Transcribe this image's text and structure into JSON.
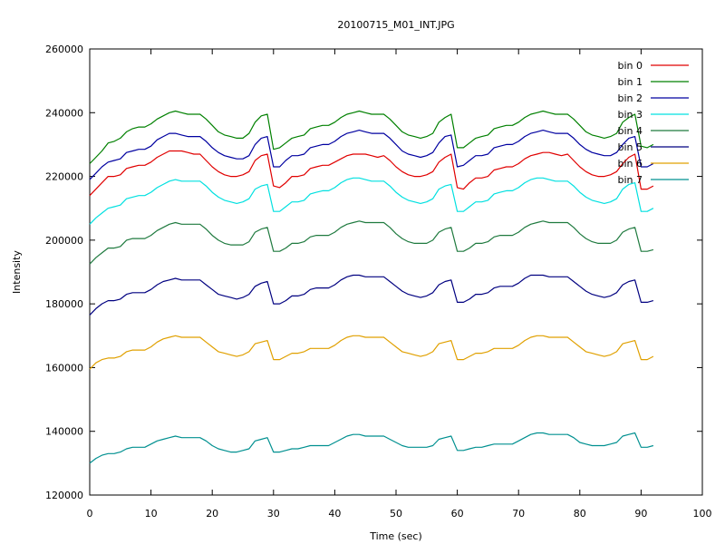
{
  "chart_data": {
    "type": "line",
    "title": "20100715_M01_INT.JPG",
    "xlabel": "Time (sec)",
    "ylabel": "Intensity",
    "xlim": [
      0,
      100
    ],
    "ylim": [
      120000,
      260000
    ],
    "xticks": [
      0,
      10,
      20,
      30,
      40,
      50,
      60,
      70,
      80,
      90,
      100
    ],
    "yticks": [
      120000,
      140000,
      160000,
      180000,
      200000,
      220000,
      240000,
      260000
    ],
    "grid": false,
    "legend_position": "top-right",
    "x": [
      0,
      1,
      2,
      3,
      4,
      5,
      6,
      7,
      8,
      9,
      10,
      11,
      12,
      13,
      14,
      15,
      16,
      17,
      18,
      19,
      20,
      21,
      22,
      23,
      24,
      25,
      26,
      27,
      28,
      29,
      30,
      31,
      32,
      33,
      34,
      35,
      36,
      37,
      38,
      39,
      40,
      41,
      42,
      43,
      44,
      45,
      46,
      47,
      48,
      49,
      50,
      51,
      52,
      53,
      54,
      55,
      56,
      57,
      58,
      59,
      60,
      61,
      62,
      63,
      64,
      65,
      66,
      67,
      68,
      69,
      70,
      71,
      72,
      73,
      74,
      75,
      76,
      77,
      78,
      79,
      80,
      81,
      82,
      83,
      84,
      85,
      86,
      87,
      88,
      89,
      90,
      91,
      92
    ],
    "series": [
      {
        "name": "bin 0",
        "color": "#e00000",
        "values": [
          214000,
          216000,
          218000,
          220000,
          220000,
          220500,
          222500,
          223000,
          223500,
          223500,
          224500,
          226000,
          227000,
          228000,
          228000,
          228000,
          227500,
          227000,
          227000,
          225000,
          223000,
          221500,
          220500,
          220000,
          220000,
          220500,
          221500,
          225000,
          226500,
          227000,
          217000,
          216500,
          218000,
          220000,
          220000,
          220500,
          222500,
          223000,
          223500,
          223500,
          224500,
          225500,
          226500,
          227000,
          227000,
          227000,
          226500,
          226000,
          226500,
          225000,
          223000,
          221500,
          220500,
          220000,
          220000,
          220500,
          221500,
          224500,
          226000,
          227000,
          216500,
          216000,
          218000,
          219500,
          219500,
          220000,
          222000,
          222500,
          223000,
          223000,
          224000,
          225500,
          226500,
          227000,
          227500,
          227500,
          227000,
          226500,
          227000,
          225000,
          223000,
          221500,
          220500,
          220000,
          220000,
          220500,
          221500,
          224000,
          226000,
          227000,
          216000,
          216000,
          217000
        ]
      },
      {
        "name": "bin 1",
        "color": "#008000",
        "values": [
          224000,
          226000,
          228000,
          230500,
          231000,
          232000,
          234000,
          235000,
          235500,
          235500,
          236500,
          238000,
          239000,
          240000,
          240500,
          240000,
          239500,
          239500,
          239500,
          238000,
          236000,
          234000,
          233000,
          232500,
          232000,
          232000,
          233500,
          237000,
          239000,
          239500,
          228500,
          229000,
          230500,
          232000,
          232500,
          233000,
          235000,
          235500,
          236000,
          236000,
          237000,
          238500,
          239500,
          240000,
          240500,
          240000,
          239500,
          239500,
          239500,
          238000,
          236000,
          234000,
          233000,
          232500,
          232000,
          232500,
          233500,
          237000,
          238500,
          239500,
          229000,
          229000,
          230500,
          232000,
          232500,
          233000,
          235000,
          235500,
          236000,
          236000,
          237000,
          238500,
          239500,
          240000,
          240500,
          240000,
          239500,
          239500,
          239500,
          238000,
          236000,
          234000,
          233000,
          232500,
          232000,
          232500,
          233500,
          237000,
          238500,
          239500,
          229500,
          229000,
          230000
        ]
      },
      {
        "name": "bin 2",
        "color": "#0000a0",
        "values": [
          219000,
          221000,
          223000,
          224500,
          225000,
          225500,
          227500,
          228000,
          228500,
          228500,
          229500,
          231500,
          232500,
          233500,
          233500,
          233000,
          232500,
          232500,
          232500,
          231000,
          229000,
          227500,
          226500,
          226000,
          225500,
          225500,
          226500,
          230000,
          232000,
          232500,
          223000,
          223000,
          225000,
          226500,
          226500,
          227000,
          229000,
          229500,
          230000,
          230000,
          231000,
          232500,
          233500,
          234000,
          234500,
          234000,
          233500,
          233500,
          233500,
          232000,
          230000,
          228000,
          227000,
          226500,
          226000,
          226500,
          227500,
          230500,
          232500,
          233000,
          223000,
          223500,
          225000,
          226500,
          226500,
          227000,
          229000,
          229500,
          230000,
          230000,
          231000,
          232500,
          233500,
          234000,
          234500,
          234000,
          233500,
          233500,
          233500,
          232000,
          230000,
          228500,
          227500,
          227000,
          226500,
          226500,
          227500,
          230000,
          232000,
          232500,
          223000,
          223000,
          224000
        ]
      },
      {
        "name": "bin 3",
        "color": "#00e0e0",
        "values": [
          205000,
          207000,
          208500,
          210000,
          210500,
          211000,
          213000,
          213500,
          214000,
          214000,
          215000,
          216500,
          217500,
          218500,
          219000,
          218500,
          218500,
          218500,
          218500,
          217000,
          215000,
          213500,
          212500,
          212000,
          211500,
          212000,
          213000,
          216000,
          217000,
          217500,
          209000,
          209000,
          210500,
          212000,
          212000,
          212500,
          214500,
          215000,
          215500,
          215500,
          216500,
          218000,
          219000,
          219500,
          219500,
          219000,
          218500,
          218500,
          218500,
          217000,
          215000,
          213500,
          212500,
          212000,
          211500,
          212000,
          213000,
          216000,
          217000,
          217500,
          209000,
          209000,
          210500,
          212000,
          212000,
          212500,
          214500,
          215000,
          215500,
          215500,
          216500,
          218000,
          219000,
          219500,
          219500,
          219000,
          218500,
          218500,
          218500,
          217000,
          215000,
          213500,
          212500,
          212000,
          211500,
          212000,
          213000,
          216000,
          217500,
          218000,
          209000,
          209000,
          210000
        ]
      },
      {
        "name": "bin 4",
        "color": "#1f7a3f",
        "values": [
          192500,
          194500,
          196000,
          197500,
          197500,
          198000,
          200000,
          200500,
          200500,
          200500,
          201500,
          203000,
          204000,
          205000,
          205500,
          205000,
          205000,
          205000,
          205000,
          203500,
          201500,
          200000,
          199000,
          198500,
          198500,
          198500,
          199500,
          202500,
          203500,
          204000,
          196500,
          196500,
          197500,
          199000,
          199000,
          199500,
          201000,
          201500,
          201500,
          201500,
          202500,
          204000,
          205000,
          205500,
          206000,
          205500,
          205500,
          205500,
          205500,
          204000,
          202000,
          200500,
          199500,
          199000,
          199000,
          199000,
          200000,
          202500,
          203500,
          204000,
          196500,
          196500,
          197500,
          199000,
          199000,
          199500,
          201000,
          201500,
          201500,
          201500,
          202500,
          204000,
          205000,
          205500,
          206000,
          205500,
          205500,
          205500,
          205500,
          204000,
          202000,
          200500,
          199500,
          199000,
          199000,
          199000,
          200000,
          202500,
          203500,
          204000,
          196500,
          196500,
          197000
        ]
      },
      {
        "name": "bin 5",
        "color": "#000080",
        "values": [
          176500,
          178500,
          180000,
          181000,
          181000,
          181500,
          183000,
          183500,
          183500,
          183500,
          184500,
          186000,
          187000,
          187500,
          188000,
          187500,
          187500,
          187500,
          187500,
          186000,
          184500,
          183000,
          182500,
          182000,
          181500,
          182000,
          183000,
          185500,
          186500,
          187000,
          180000,
          180000,
          181000,
          182500,
          182500,
          183000,
          184500,
          185000,
          185000,
          185000,
          186000,
          187500,
          188500,
          189000,
          189000,
          188500,
          188500,
          188500,
          188500,
          187000,
          185500,
          184000,
          183000,
          182500,
          182000,
          182500,
          183500,
          186000,
          187000,
          187500,
          180500,
          180500,
          181500,
          183000,
          183000,
          183500,
          185000,
          185500,
          185500,
          185500,
          186500,
          188000,
          189000,
          189000,
          189000,
          188500,
          188500,
          188500,
          188500,
          187000,
          185500,
          184000,
          183000,
          182500,
          182000,
          182500,
          183500,
          186000,
          187000,
          187500,
          180500,
          180500,
          181000
        ]
      },
      {
        "name": "bin 6",
        "color": "#e0a000",
        "values": [
          159500,
          161500,
          162500,
          163000,
          163000,
          163500,
          165000,
          165500,
          165500,
          165500,
          166500,
          168000,
          169000,
          169500,
          170000,
          169500,
          169500,
          169500,
          169500,
          168000,
          166500,
          165000,
          164500,
          164000,
          163500,
          164000,
          165000,
          167500,
          168000,
          168500,
          162500,
          162500,
          163500,
          164500,
          164500,
          165000,
          166000,
          166000,
          166000,
          166000,
          167000,
          168500,
          169500,
          170000,
          170000,
          169500,
          169500,
          169500,
          169500,
          168000,
          166500,
          165000,
          164500,
          164000,
          163500,
          164000,
          165000,
          167500,
          168000,
          168500,
          162500,
          162500,
          163500,
          164500,
          164500,
          165000,
          166000,
          166000,
          166000,
          166000,
          167000,
          168500,
          169500,
          170000,
          170000,
          169500,
          169500,
          169500,
          169500,
          168000,
          166500,
          165000,
          164500,
          164000,
          163500,
          164000,
          165000,
          167500,
          168000,
          168500,
          162500,
          162500,
          163500
        ]
      },
      {
        "name": "bin 7",
        "color": "#009090",
        "values": [
          130000,
          131500,
          132500,
          133000,
          133000,
          133500,
          134500,
          135000,
          135000,
          135000,
          136000,
          137000,
          137500,
          138000,
          138500,
          138000,
          138000,
          138000,
          138000,
          137000,
          135500,
          134500,
          134000,
          133500,
          133500,
          134000,
          134500,
          137000,
          137500,
          138000,
          133500,
          133500,
          134000,
          134500,
          134500,
          135000,
          135500,
          135500,
          135500,
          135500,
          136500,
          137500,
          138500,
          139000,
          139000,
          138500,
          138500,
          138500,
          138500,
          137500,
          136500,
          135500,
          135000,
          135000,
          135000,
          135000,
          135500,
          137500,
          138000,
          138500,
          134000,
          134000,
          134500,
          135000,
          135000,
          135500,
          136000,
          136000,
          136000,
          136000,
          137000,
          138000,
          139000,
          139500,
          139500,
          139000,
          139000,
          139000,
          139000,
          138000,
          136500,
          136000,
          135500,
          135500,
          135500,
          136000,
          136500,
          138500,
          139000,
          139500,
          135000,
          135000,
          135500
        ]
      }
    ]
  }
}
